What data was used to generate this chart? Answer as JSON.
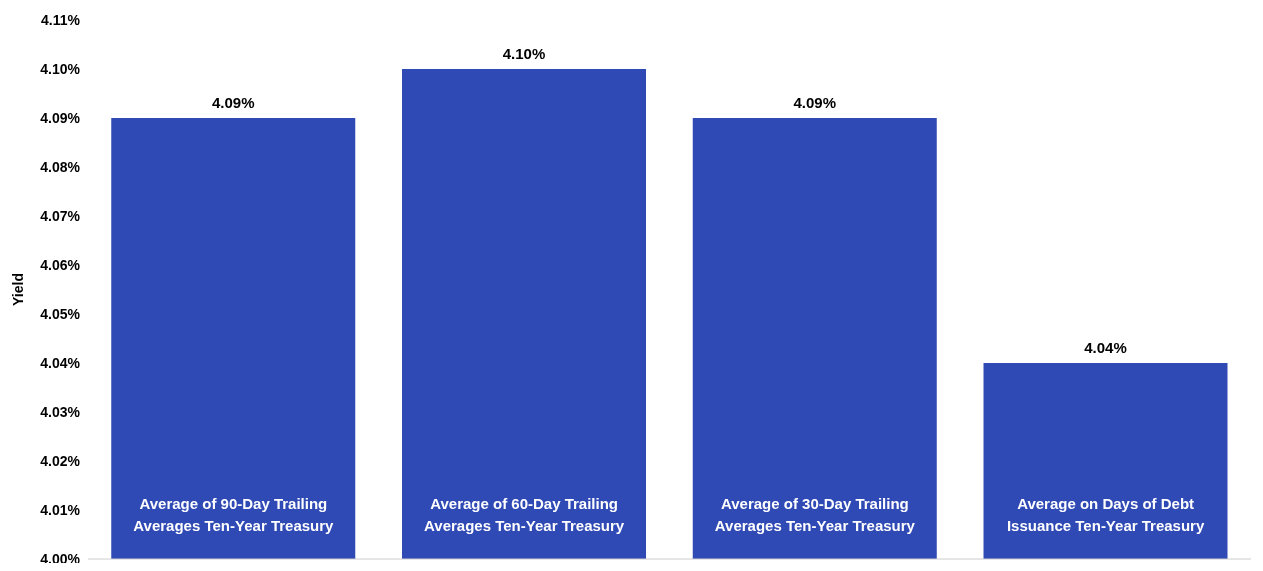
{
  "chart_data": {
    "type": "bar",
    "ylabel": "Yield",
    "categories": [
      "Average of 90-Day Trailing Averages Ten-Year Treasury",
      "Average of 60-Day Trailing Averages Ten-Year Treasury",
      "Average of 30-Day Trailing Averages Ten-Year Treasury",
      "Average on Days of Debt Issuance Ten-Year Treasury"
    ],
    "values": [
      4.09,
      4.1,
      4.09,
      4.04
    ],
    "value_labels": [
      "4.09%",
      "4.10%",
      "4.09%",
      "4.04%"
    ],
    "color": "#2f49b5",
    "ylim": [
      4.0,
      4.11
    ],
    "yticks": [
      {
        "value": 4.0,
        "label": "4.00%"
      },
      {
        "value": 4.01,
        "label": "4.01%"
      },
      {
        "value": 4.02,
        "label": "4.02%"
      },
      {
        "value": 4.03,
        "label": "4.03%"
      },
      {
        "value": 4.04,
        "label": "4.04%"
      },
      {
        "value": 4.05,
        "label": "4.05%"
      },
      {
        "value": 4.06,
        "label": "4.06%"
      },
      {
        "value": 4.07,
        "label": "4.07%"
      },
      {
        "value": 4.08,
        "label": "4.08%"
      },
      {
        "value": 4.09,
        "label": "4.09%"
      },
      {
        "value": 4.1,
        "label": "4.10%"
      },
      {
        "value": 4.11,
        "label": "4.11%"
      }
    ],
    "grid": false,
    "legend": false
  }
}
